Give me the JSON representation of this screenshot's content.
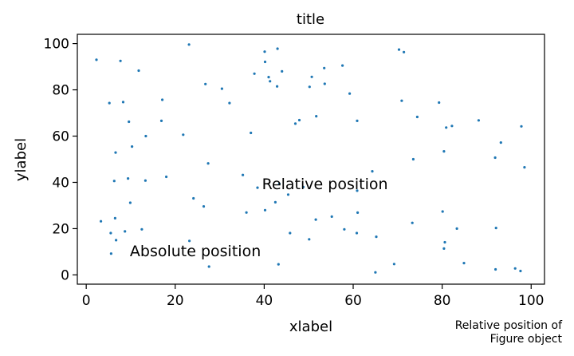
{
  "chart_data": {
    "type": "scatter",
    "title": "title",
    "xlabel": "xlabel",
    "ylabel": "ylabel",
    "xlim": [
      -2,
      103
    ],
    "ylim": [
      -4,
      104
    ],
    "xticks": [
      0,
      20,
      40,
      60,
      80,
      100
    ],
    "yticks": [
      0,
      20,
      40,
      60,
      80,
      100
    ],
    "grid": false,
    "marker_color": "#1f77b4",
    "annotations": {
      "relative": {
        "text": "Relative position",
        "x": 39.5,
        "y": 39.5
      },
      "absolute": {
        "text": "Absolute position",
        "x": 9.8,
        "y": 10.5
      }
    },
    "figure_note": {
      "line1": "Relative position of",
      "line2": "Figure object"
    },
    "points": [
      [
        2.3,
        93
      ],
      [
        7.7,
        92.5
      ],
      [
        11.8,
        88.3
      ],
      [
        23.1,
        99.6
      ],
      [
        26.8,
        82.5
      ],
      [
        30.5,
        80.5
      ],
      [
        32.2,
        74.3
      ],
      [
        37.8,
        87
      ],
      [
        40.1,
        96.5
      ],
      [
        40.2,
        92.1
      ],
      [
        43,
        97.8
      ],
      [
        44,
        88
      ],
      [
        41,
        85.5
      ],
      [
        41.3,
        83.7
      ],
      [
        42.9,
        81.5
      ],
      [
        50.7,
        85.6
      ],
      [
        53.5,
        89.4
      ],
      [
        57.6,
        90.5
      ],
      [
        50.2,
        81.3
      ],
      [
        53.6,
        82.6
      ],
      [
        59.2,
        78.4
      ],
      [
        70.3,
        97.4
      ],
      [
        71.4,
        96.3
      ],
      [
        70.9,
        75.3
      ],
      [
        79.3,
        74.5
      ],
      [
        5.2,
        74.3
      ],
      [
        8.3,
        74.7
      ],
      [
        17.1,
        75.7
      ],
      [
        9.6,
        66.2
      ],
      [
        16.9,
        66.6
      ],
      [
        51.7,
        68.6
      ],
      [
        47.9,
        66.9
      ],
      [
        47,
        65.4
      ],
      [
        60.9,
        66.6
      ],
      [
        74.4,
        68.3
      ],
      [
        80.9,
        63.7
      ],
      [
        82.2,
        64.4
      ],
      [
        88.2,
        66.8
      ],
      [
        97.8,
        64.2
      ],
      [
        13.4,
        60
      ],
      [
        21.8,
        60.6
      ],
      [
        37,
        61.4
      ],
      [
        93.2,
        57.2
      ],
      [
        10.3,
        55.5
      ],
      [
        6.6,
        52.9
      ],
      [
        80.4,
        53.4
      ],
      [
        73.5,
        50
      ],
      [
        91.9,
        50.7
      ],
      [
        98.5,
        46.5
      ],
      [
        27.4,
        48.2
      ],
      [
        18,
        42.4
      ],
      [
        35.2,
        43.2
      ],
      [
        64.3,
        44.8
      ],
      [
        6.3,
        40.6
      ],
      [
        9.4,
        41.7
      ],
      [
        13.3,
        40.8
      ],
      [
        38.5,
        37.7
      ],
      [
        43.4,
        39.4
      ],
      [
        48.8,
        38
      ],
      [
        45.4,
        34.7
      ],
      [
        60.9,
        36.4
      ],
      [
        24.1,
        33.1
      ],
      [
        9.9,
        31.2
      ],
      [
        42.5,
        31.4
      ],
      [
        40.2,
        28
      ],
      [
        26.4,
        29.6
      ],
      [
        36,
        27
      ],
      [
        61,
        26.9
      ],
      [
        80.1,
        27.4
      ],
      [
        55.2,
        25.2
      ],
      [
        51.6,
        23.9
      ],
      [
        73.3,
        22.5
      ],
      [
        3.3,
        23.2
      ],
      [
        6.5,
        24.5
      ],
      [
        8.7,
        18.8
      ],
      [
        12.5,
        19.7
      ],
      [
        45.8,
        18.1
      ],
      [
        58,
        19.7
      ],
      [
        60.8,
        18.1
      ],
      [
        83.3,
        20
      ],
      [
        92.1,
        20.3
      ],
      [
        65.2,
        16.5
      ],
      [
        5.5,
        18.1
      ],
      [
        6.7,
        15
      ],
      [
        23.2,
        14.7
      ],
      [
        50.1,
        15.4
      ],
      [
        80.6,
        14.1
      ],
      [
        80.4,
        11.4
      ],
      [
        5.6,
        9.2
      ],
      [
        27.6,
        3.6
      ],
      [
        43.2,
        4.6
      ],
      [
        69.2,
        4.7
      ],
      [
        84.9,
        5.1
      ],
      [
        65,
        1.1
      ],
      [
        92,
        2.4
      ],
      [
        96.4,
        2.8
      ],
      [
        97.6,
        1.7
      ]
    ]
  }
}
